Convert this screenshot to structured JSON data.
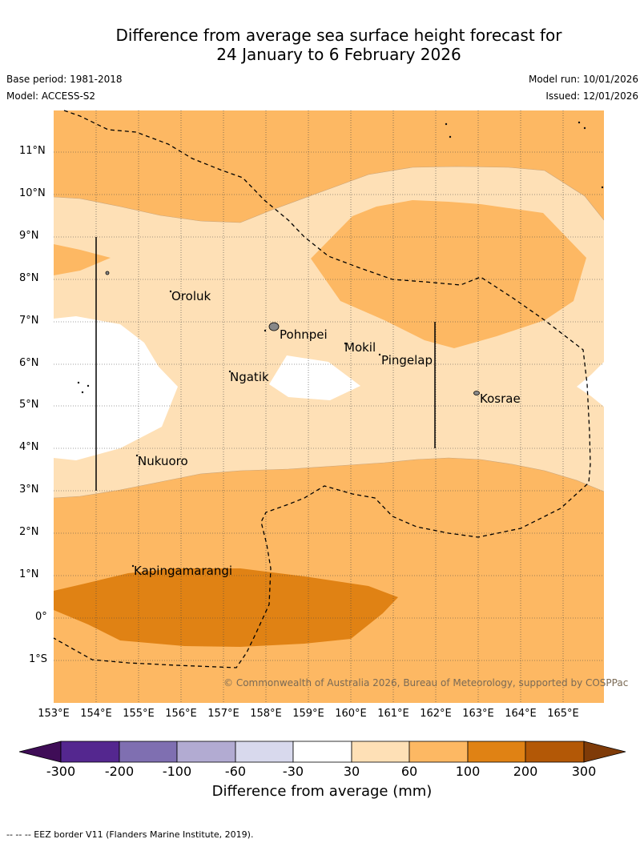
{
  "title_line1": "Difference from average sea surface height forecast for",
  "title_line2": "24 January to 6 February 2026",
  "base_period": "Base period: 1981-2018",
  "model": "Model: ACCESS-S2",
  "model_run": "Model run: 10/01/2026",
  "issued": "Issued: 12/01/2026",
  "lat_labels": [
    "11°N",
    "10°N",
    "9°N",
    "8°N",
    "7°N",
    "6°N",
    "5°N",
    "4°N",
    "3°N",
    "2°N",
    "1°N",
    "0°",
    "1°S"
  ],
  "lon_labels": [
    "153°E",
    "154°E",
    "155°E",
    "156°E",
    "157°E",
    "158°E",
    "159°E",
    "160°E",
    "161°E",
    "162°E",
    "163°E",
    "164°E",
    "165°E"
  ],
  "places": {
    "oroluk": "Oroluk",
    "pohnpei": "Pohnpei",
    "mokil": "Mokil",
    "pingelap": "Pingelap",
    "ngatik": "Ngatik",
    "kosrae": "Kosrae",
    "nukuoro": "Nukuoro",
    "kapingamarangi": "Kapingamarangi"
  },
  "copyright": "© Commonwealth of Australia 2026, Bureau of Meteorology, supported by COSPPac",
  "colorbar": {
    "ticks": [
      "-300",
      "-200",
      "-100",
      "-60",
      "-30",
      "30",
      "60",
      "100",
      "200",
      "300"
    ],
    "colors": [
      "#3f0d57",
      "#54278f",
      "#7f6fb1",
      "#b2abd2",
      "#d8d9ed",
      "#ffffff",
      "#fee0b6",
      "#fdb863",
      "#e08214",
      "#b35806",
      "#7f3b08"
    ],
    "title": "Difference from average (mm)"
  },
  "footer": "--  --  -- EEZ border V11 (Flanders Marine Institute, 2019)."
}
